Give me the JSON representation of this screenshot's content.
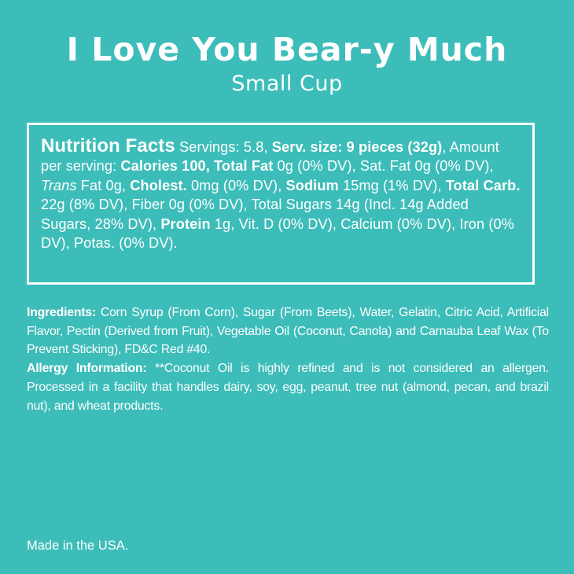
{
  "title": "I Love You Bear-y Much",
  "subtitle": "Small Cup",
  "nutrition": {
    "heading": "Nutrition Facts",
    "servings": "Servings: 5.8, ",
    "serv_size_label": "Serv. size: 9 pieces (32g)",
    "amount_per_serving": ", Amount per serving: ",
    "calories_label": "Calories 100, ",
    "total_fat_label": "Total Fat",
    "total_fat_value": " 0g (0% DV), Sat. Fat 0g (0% DV), ",
    "trans_label": "Trans",
    "trans_value": " Fat 0g, ",
    "cholest_label": "Cholest.",
    "cholest_value": " 0mg (0% DV), ",
    "sodium_label": "Sodium",
    "sodium_value": " 15mg (1% DV), ",
    "carb_label": "Total Carb.",
    "carb_value": " 22g (8% DV), Fiber 0g (0% DV), Total Sugars 14g (Incl. 14g Added Sugars, 28% DV), ",
    "protein_label": "Protein",
    "protein_value": " 1g, Vit. D (0% DV), Calcium (0% DV), Iron (0% DV), Potas. (0% DV)."
  },
  "ingredients": {
    "label": "Ingredients:",
    "text": " Corn Syrup (From Corn), Sugar (From Beets), Water, Gelatin, Citric Acid, Artificial Flavor, Pectin (Derived from Fruit), Vegetable Oil (Coconut, Canola) and Carnauba Leaf Wax (To Prevent Sticking), FD&C Red #40."
  },
  "allergy": {
    "label": "Allergy Information:",
    "text": " **Coconut Oil is highly refined and is not considered an allergen. Processed in a facility that handles dairy, soy, egg, peanut, tree nut (almond, pecan, and brazil nut), and wheat products."
  },
  "origin": "Made in the USA.",
  "colors": {
    "background": "#3dbdb9",
    "text": "#ffffff"
  }
}
